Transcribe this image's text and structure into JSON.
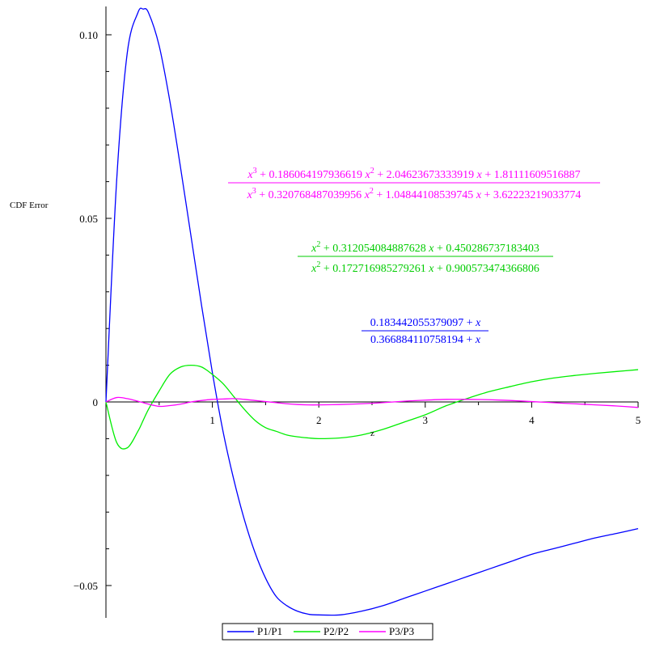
{
  "chart_data": {
    "type": "line",
    "title": "",
    "xlabel": "z",
    "ylabel": "CDF Error",
    "xlim": [
      0,
      5
    ],
    "ylim": [
      -0.058,
      0.108
    ],
    "grid": false,
    "x_ticks": [
      {
        "value": 1,
        "label": "1"
      },
      {
        "value": 2,
        "label": "2"
      },
      {
        "value": 3,
        "label": "3"
      },
      {
        "value": 4,
        "label": "4"
      },
      {
        "value": 5,
        "label": "5"
      }
    ],
    "y_ticks": [
      {
        "value": 0.1,
        "label": "0.10"
      },
      {
        "value": 0.05,
        "label": "0.05"
      },
      {
        "value": 0,
        "label": "0"
      },
      {
        "value": -0.05,
        "label": "−0.05"
      }
    ],
    "legend": {
      "placement": "bottom-center"
    },
    "x": [
      0,
      0.1,
      0.2,
      0.3,
      0.35,
      0.4,
      0.5,
      0.6,
      0.7,
      0.8,
      0.9,
      1.0,
      1.1,
      1.2,
      1.3,
      1.4,
      1.5,
      1.6,
      1.7,
      1.8,
      1.9,
      2.0,
      2.2,
      2.4,
      2.6,
      2.8,
      3.0,
      3.2,
      3.4,
      3.6,
      3.8,
      4.0,
      4.2,
      4.4,
      4.6,
      4.8,
      5.0
    ],
    "series": [
      {
        "name": "P1/P1",
        "color": "#0000ff",
        "values": [
          0,
          0.06,
          0.095,
          0.106,
          0.107,
          0.106,
          0.097,
          0.082,
          0.064,
          0.045,
          0.026,
          0.008,
          -0.008,
          -0.021,
          -0.032,
          -0.041,
          -0.048,
          -0.053,
          -0.0555,
          -0.057,
          -0.0578,
          -0.058,
          -0.058,
          -0.057,
          -0.0555,
          -0.0535,
          -0.0515,
          -0.0495,
          -0.0475,
          -0.0455,
          -0.0435,
          -0.0415,
          -0.04,
          -0.0385,
          -0.037,
          -0.0358,
          -0.0345
        ]
      },
      {
        "name": "P2/P2",
        "color": "#00ee00",
        "values": [
          0,
          -0.011,
          -0.0125,
          -0.008,
          -0.005,
          -0.002,
          0.003,
          0.0075,
          0.0095,
          0.01,
          0.0095,
          0.0075,
          0.005,
          0.0015,
          -0.002,
          -0.005,
          -0.007,
          -0.008,
          -0.009,
          -0.0095,
          -0.0098,
          -0.01,
          -0.0098,
          -0.009,
          -0.0075,
          -0.0055,
          -0.0035,
          -0.001,
          0.001,
          0.0028,
          0.0042,
          0.0055,
          0.0065,
          0.0072,
          0.0078,
          0.0083,
          0.0088
        ]
      },
      {
        "name": "P3/P3",
        "color": "#ff00ff",
        "values": [
          0,
          0.0012,
          0.0009,
          0.0002,
          -0.0002,
          -0.0006,
          -0.0012,
          -0.001,
          -0.0006,
          0.0,
          0.0004,
          0.0007,
          0.0008,
          0.0009,
          0.0007,
          0.0004,
          0.0001,
          -0.0002,
          -0.0005,
          -0.0007,
          -0.0008,
          -0.0008,
          -0.0007,
          -0.0005,
          -0.0002,
          0.0002,
          0.0005,
          0.0007,
          0.0007,
          0.0006,
          0.0004,
          0.0001,
          -0.0002,
          -0.0005,
          -0.0008,
          -0.0011,
          -0.0015
        ]
      }
    ],
    "annotations": [
      {
        "color": "#ff00ff",
        "numerator": [
          "x",
          "3",
          " + 0.186064197936619 ",
          "x",
          "2",
          " + 2.04623673333919 ",
          "x",
          "",
          " + 1.81111609516887"
        ],
        "denominator": [
          "x",
          "3",
          " + 0.320768487039956 ",
          "x",
          "2",
          " + 1.04844108539745 ",
          "x",
          "",
          " + 3.62223219033774"
        ]
      },
      {
        "color": "#00cc00",
        "numerator": [
          "x",
          "2",
          " + 0.312054084887628 ",
          "x",
          "",
          " + 0.450286737183403"
        ],
        "denominator": [
          "x",
          "2",
          " + 0.172716985279261 ",
          "x",
          "",
          " + 0.900573474366806"
        ]
      },
      {
        "color": "#0000ff",
        "numerator": [
          "0.183442055379097 + ",
          "x",
          ""
        ],
        "denominator": [
          "0.366884110758194 + ",
          "x",
          ""
        ]
      }
    ]
  }
}
